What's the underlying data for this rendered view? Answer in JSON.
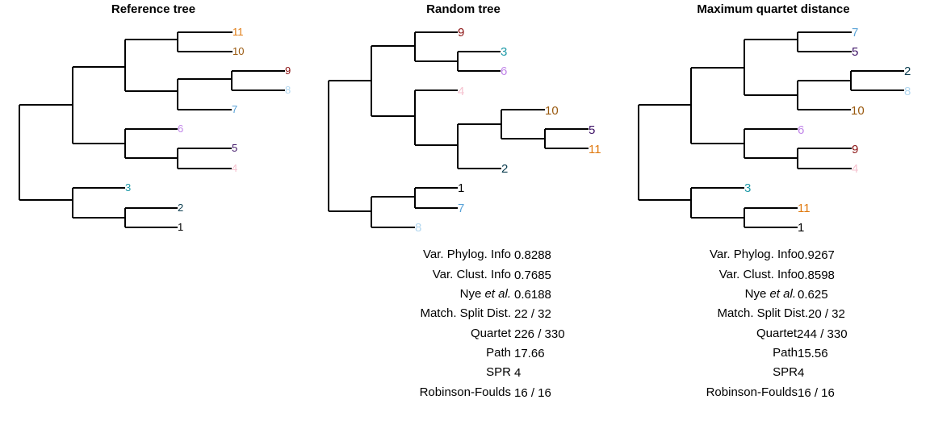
{
  "colors": {
    "1": "#000000",
    "2": "#0b3d4f",
    "3": "#1f9aa8",
    "4": "#f5c2cf",
    "5": "#3d1266",
    "6": "#c084e8",
    "7": "#5aa3d8",
    "8": "#b4d8f0",
    "9": "#8a1010",
    "10": "#9a5a10",
    "11": "#e07a10"
  },
  "panels": [
    {
      "title": "Reference tree",
      "tips": [
        "11",
        "10",
        "9",
        "8",
        "7",
        "6",
        "5",
        "4",
        "3",
        "2",
        "1"
      ],
      "metrics": []
    },
    {
      "title": "Random tree",
      "tips": [
        "9",
        "3",
        "6",
        "4",
        "10",
        "5",
        "11",
        "2",
        "1",
        "7",
        "8"
      ],
      "metrics": [
        {
          "label": "Var. Phylog. Info",
          "value": "0.8288"
        },
        {
          "label": "Var. Clust. Info",
          "value": "0.7685"
        },
        {
          "label": "Nye et al.",
          "value": "0.6188"
        },
        {
          "label": "Match. Split Dist.",
          "value": "22 / 32"
        },
        {
          "label": "Quartet",
          "value": "226 / 330"
        },
        {
          "label": "Path",
          "value": "17.66"
        },
        {
          "label": "SPR",
          "value": "4"
        },
        {
          "label": "Robinson-Foulds",
          "value": "16 / 16"
        }
      ]
    },
    {
      "title": "Maximum quartet distance",
      "tips": [
        "7",
        "5",
        "2",
        "8",
        "10",
        "6",
        "9",
        "4",
        "3",
        "11",
        "1"
      ],
      "metrics": [
        {
          "label": "Var. Phylog. Info",
          "value": "0.9267"
        },
        {
          "label": "Var. Clust. Info",
          "value": "0.8598"
        },
        {
          "label": "Nye et al.",
          "value": "0.625"
        },
        {
          "label": "Match. Split Dist.",
          "value": "20 / 32"
        },
        {
          "label": "Quartet",
          "value": "244 / 330"
        },
        {
          "label": "Path",
          "value": "15.56"
        },
        {
          "label": "SPR",
          "value": "4"
        },
        {
          "label": "Robinson-Foulds",
          "value": "16 / 16"
        }
      ]
    }
  ]
}
